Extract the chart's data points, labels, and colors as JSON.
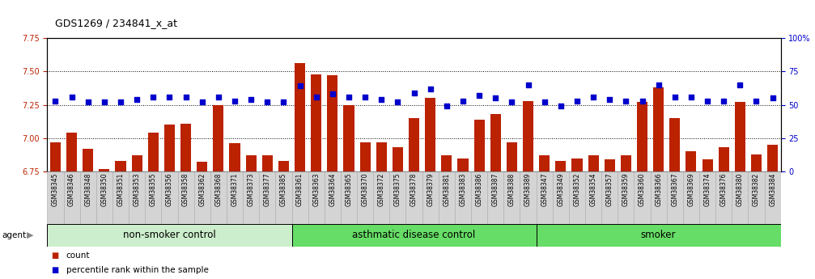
{
  "title": "GDS1269 / 234841_x_at",
  "samples": [
    "GSM38345",
    "GSM38346",
    "GSM38348",
    "GSM38350",
    "GSM38351",
    "GSM38353",
    "GSM38355",
    "GSM38356",
    "GSM38358",
    "GSM38362",
    "GSM38368",
    "GSM38371",
    "GSM38373",
    "GSM38377",
    "GSM38385",
    "GSM38361",
    "GSM38363",
    "GSM38364",
    "GSM38365",
    "GSM38370",
    "GSM38372",
    "GSM38375",
    "GSM38378",
    "GSM38379",
    "GSM38381",
    "GSM38383",
    "GSM38386",
    "GSM38387",
    "GSM38388",
    "GSM38389",
    "GSM38347",
    "GSM38349",
    "GSM38352",
    "GSM38354",
    "GSM38357",
    "GSM38359",
    "GSM38360",
    "GSM38366",
    "GSM38367",
    "GSM38369",
    "GSM38374",
    "GSM38376",
    "GSM38380",
    "GSM38382",
    "GSM38384"
  ],
  "bar_values": [
    6.97,
    7.04,
    6.92,
    6.77,
    6.83,
    6.87,
    7.04,
    7.1,
    7.11,
    6.82,
    7.25,
    6.96,
    6.87,
    6.87,
    6.83,
    7.56,
    7.48,
    7.47,
    7.25,
    6.97,
    6.97,
    6.93,
    7.15,
    7.3,
    6.87,
    6.85,
    7.14,
    7.18,
    6.97,
    7.28,
    6.87,
    6.83,
    6.85,
    6.87,
    6.84,
    6.87,
    7.27,
    7.38,
    7.15,
    6.9,
    6.84,
    6.93,
    7.27,
    6.88,
    6.95
  ],
  "percentile_values": [
    53,
    56,
    52,
    52,
    52,
    54,
    56,
    56,
    56,
    52,
    56,
    53,
    54,
    52,
    52,
    64,
    56,
    58,
    56,
    56,
    54,
    52,
    59,
    62,
    49,
    53,
    57,
    55,
    52,
    65,
    52,
    49,
    53,
    56,
    54,
    53,
    53,
    65,
    56,
    56,
    53,
    53,
    65,
    53,
    55
  ],
  "group_defs": [
    {
      "label": "non-smoker control",
      "start": 0,
      "end": 15,
      "color": "#cceecc"
    },
    {
      "label": "asthmatic disease control",
      "start": 15,
      "end": 30,
      "color": "#66dd66"
    },
    {
      "label": "smoker",
      "start": 30,
      "end": 45,
      "color": "#66dd66"
    }
  ],
  "ylim_left": [
    6.75,
    7.75
  ],
  "ylim_right": [
    0,
    100
  ],
  "yticks_left": [
    6.75,
    7.0,
    7.25,
    7.5,
    7.75
  ],
  "yticks_right": [
    0,
    25,
    50,
    75,
    100
  ],
  "bar_color": "#bb2200",
  "dot_color": "#0000cc",
  "background_color": "#ffffff",
  "title_fontsize": 9,
  "tick_fontsize": 7,
  "group_label_fontsize": 8.5
}
